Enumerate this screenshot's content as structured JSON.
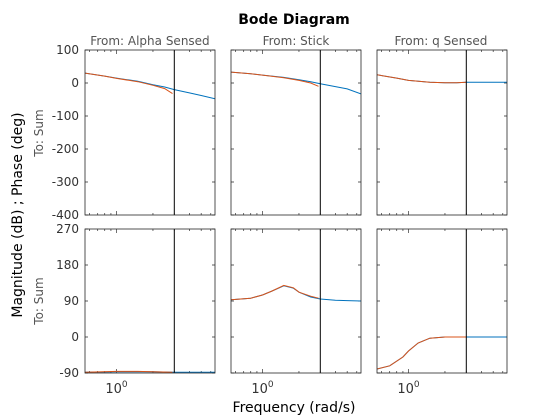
{
  "chart_data": {
    "type": "line",
    "title": "Bode Diagram",
    "xlabel": "Frequency  (rad/s)",
    "ylabel": "Magnitude (dB) ; Phase (deg)",
    "column_titles": [
      "From: Alpha Sensed",
      "From: Stick",
      "From: q Sensed"
    ],
    "row_labels": [
      "To: Sum",
      "To: Sum"
    ],
    "x_scale": "log",
    "xlim": [
      0.55,
      6.5
    ],
    "x_tick_label": "10^0",
    "x_tick_label_base": "10",
    "x_tick_label_exp": "0",
    "x_tick_value": 1,
    "vertical_marker_x": 3.0,
    "grid": false,
    "series_colors": {
      "model": "#0072BD",
      "measured": "#D95319",
      "marker": "#000000"
    },
    "rows": [
      {
        "ylim": [
          -400,
          100
        ],
        "yticks": [
          -400,
          -300,
          -200,
          -100,
          0,
          100
        ],
        "ytick_labels": [
          "-400",
          "-300",
          "-200",
          "-100",
          "0",
          "100"
        ],
        "panels": [
          {
            "model": {
              "x": [
                0.55,
                0.8,
                1.0,
                1.5,
                2.0,
                2.5,
                3.0,
                4.0,
                5.0,
                6.5
              ],
              "y": [
                30,
                21,
                15,
                5,
                -5,
                -12,
                -20,
                -30,
                -38,
                -48
              ]
            },
            "measured": {
              "x": [
                0.55,
                0.8,
                1.0,
                1.5,
                2.0,
                2.5,
                2.9
              ],
              "y": [
                30,
                21,
                14,
                4,
                -7,
                -17,
                -32
              ]
            }
          },
          {
            "model": {
              "x": [
                0.55,
                0.8,
                1.0,
                1.5,
                2.0,
                2.5,
                3.0,
                4.0,
                5.0,
                6.5
              ],
              "y": [
                33,
                28,
                24,
                17,
                10,
                4,
                -2,
                -11,
                -18,
                -33
              ]
            },
            "measured": {
              "x": [
                0.55,
                0.8,
                1.0,
                1.5,
                2.0,
                2.5,
                2.9
              ],
              "y": [
                33,
                28,
                24,
                16,
                8,
                0,
                -10
              ]
            }
          },
          {
            "model": {
              "x": [
                0.55,
                0.8,
                1.0,
                1.5,
                2.0,
                2.5,
                3.0,
                4.0,
                5.0,
                6.5
              ],
              "y": [
                25,
                15,
                8,
                2,
                1,
                1,
                2,
                2,
                2,
                2
              ]
            },
            "measured": {
              "x": [
                0.55,
                0.8,
                1.0,
                1.5,
                2.0,
                2.5,
                3.0
              ],
              "y": [
                25,
                15,
                8,
                2,
                1,
                1,
                2
              ]
            }
          }
        ]
      },
      {
        "ylim": [
          -90,
          270
        ],
        "yticks": [
          -90,
          0,
          90,
          180,
          270
        ],
        "ytick_labels": [
          "-90",
          "0",
          "90",
          "180",
          "270"
        ],
        "panels": [
          {
            "model": {
              "x": [
                0.55,
                1.0,
                1.5,
                2.0,
                3.0,
                4.0,
                5.0,
                6.5
              ],
              "y": [
                -88,
                -87,
                -87,
                -87,
                -88,
                -88,
                -88,
                -88
              ]
            },
            "measured": {
              "x": [
                0.55,
                1.0,
                1.5,
                2.0,
                2.9
              ],
              "y": [
                -88,
                -86,
                -86,
                -87,
                -88
              ]
            }
          },
          {
            "model": {
              "x": [
                0.55,
                0.8,
                1.0,
                1.2,
                1.5,
                1.8,
                2.0,
                2.5,
                3.0,
                4.0,
                5.0,
                6.5
              ],
              "y": [
                93,
                97,
                105,
                115,
                128,
                122,
                112,
                100,
                95,
                92,
                91,
                90
              ]
            },
            "measured": {
              "x": [
                0.55,
                0.8,
                1.0,
                1.2,
                1.5,
                1.8,
                2.0,
                2.5,
                2.9
              ],
              "y": [
                93,
                97,
                105,
                115,
                129,
                123,
                112,
                102,
                97
              ]
            }
          },
          {
            "model": {
              "x": [
                0.55,
                0.7,
                0.9,
                1.0,
                1.2,
                1.5,
                2.0,
                2.5,
                3.0,
                4.0,
                6.5
              ],
              "y": [
                -80,
                -72,
                -50,
                -35,
                -15,
                -3,
                0,
                0,
                0,
                0,
                0
              ]
            },
            "measured": {
              "x": [
                0.55,
                0.7,
                0.9,
                1.0,
                1.2,
                1.5,
                2.0,
                2.5,
                3.0
              ],
              "y": [
                -80,
                -72,
                -50,
                -35,
                -15,
                -3,
                0,
                0,
                0
              ]
            }
          }
        ]
      }
    ]
  }
}
